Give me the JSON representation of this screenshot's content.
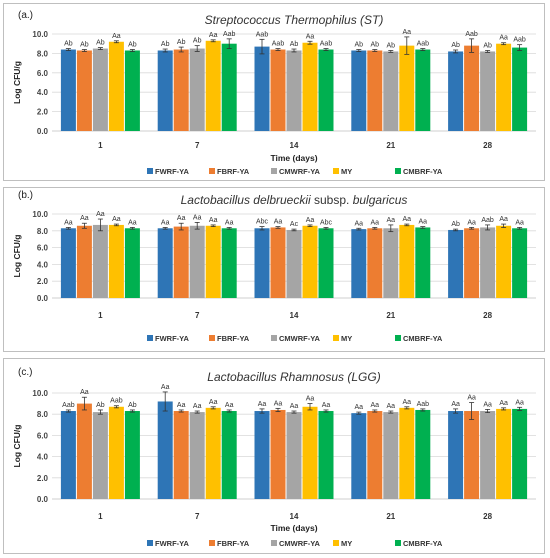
{
  "colors": {
    "FWRF-YA": "#2e75b6",
    "FBRF-YA": "#ed7d31",
    "CMWRF-YA": "#a5a5a5",
    "MY": "#ffc000",
    "CMBRF-YA": "#00b050"
  },
  "chart_data": [
    {
      "type": "bar",
      "panel_label": "(a.)",
      "title": "Streptococcus Thermophilus (ST)",
      "xlabel": "Time (days)",
      "ylabel": "Log CFU/g",
      "ylim": [
        0,
        10
      ],
      "yticks": [
        "0.0",
        "2.0",
        "4.0",
        "6.0",
        "8.0",
        "10.0"
      ],
      "grid": true,
      "legend_position": "bottom",
      "categories": [
        "1",
        "7",
        "14",
        "21",
        "28"
      ],
      "series": [
        {
          "name": "FWRF-YA",
          "values": [
            8.4,
            8.3,
            8.7,
            8.3,
            8.2
          ],
          "errors": [
            0.1,
            0.15,
            0.75,
            0.1,
            0.15
          ],
          "labels": [
            "Ab",
            "Ab",
            "Aab",
            "Ab",
            "Ab"
          ]
        },
        {
          "name": "FBRF-YA",
          "values": [
            8.3,
            8.4,
            8.4,
            8.3,
            8.8
          ],
          "errors": [
            0.1,
            0.25,
            0.1,
            0.1,
            0.7
          ],
          "labels": [
            "Ab",
            "Ab",
            "Aab",
            "Ab",
            "Aab"
          ]
        },
        {
          "name": "CMWRF-YA",
          "values": [
            8.5,
            8.5,
            8.3,
            8.2,
            8.2
          ],
          "errors": [
            0.1,
            0.3,
            0.15,
            0.1,
            0.1
          ],
          "labels": [
            "Ab",
            "Ab",
            "Ab",
            "Ab",
            "Ab"
          ]
        },
        {
          "name": "MY",
          "values": [
            9.2,
            9.3,
            9.1,
            8.8,
            9.0
          ],
          "errors": [
            0.1,
            0.1,
            0.15,
            0.9,
            0.1
          ],
          "labels": [
            "Aa",
            "Aa",
            "Aa",
            "Aa",
            "Aa"
          ]
        },
        {
          "name": "CMBRF-YA",
          "values": [
            8.3,
            9.0,
            8.4,
            8.4,
            8.6
          ],
          "errors": [
            0.1,
            0.5,
            0.1,
            0.1,
            0.3
          ],
          "labels": [
            "Ab",
            "Aab",
            "Aab",
            "Aab",
            "Aab"
          ]
        }
      ]
    },
    {
      "type": "bar",
      "panel_label": "(b.)",
      "title_italic": "Lactobacillus delbrueckii",
      "title_normal": " subsp. ",
      "title_italic2": "bulgaricus",
      "xlabel": "",
      "ylabel": "Log CFU/g",
      "ylim": [
        0,
        10
      ],
      "yticks": [
        "0.0",
        "2.0",
        "4.0",
        "6.0",
        "8.0",
        "10.0"
      ],
      "grid": true,
      "legend_position": "bottom",
      "categories": [
        "1",
        "7",
        "14",
        "21",
        "28"
      ],
      "series": [
        {
          "name": "FWRF-YA",
          "values": [
            8.3,
            8.3,
            8.3,
            8.2,
            8.1
          ],
          "errors": [
            0.1,
            0.1,
            0.2,
            0.1,
            0.1
          ],
          "labels": [
            "Aa",
            "Aa",
            "Abc",
            "Aa",
            "Ab"
          ]
        },
        {
          "name": "FBRF-YA",
          "values": [
            8.6,
            8.5,
            8.4,
            8.3,
            8.3
          ],
          "errors": [
            0.3,
            0.4,
            0.1,
            0.1,
            0.1
          ],
          "labels": [
            "Aa",
            "Aa",
            "Aa",
            "Aa",
            "Aa"
          ]
        },
        {
          "name": "CMWRF-YA",
          "values": [
            8.7,
            8.6,
            8.1,
            8.3,
            8.4
          ],
          "errors": [
            0.7,
            0.4,
            0.1,
            0.4,
            0.3
          ],
          "labels": [
            "Aa",
            "Aa",
            "Ac",
            "Aa",
            "Aab"
          ]
        },
        {
          "name": "MY",
          "values": [
            8.7,
            8.6,
            8.6,
            8.7,
            8.6
          ],
          "errors": [
            0.1,
            0.1,
            0.1,
            0.1,
            0.2
          ],
          "labels": [
            "Aa",
            "Aa",
            "Aa",
            "Aa",
            "Aa"
          ]
        },
        {
          "name": "CMBRF-YA",
          "values": [
            8.3,
            8.3,
            8.3,
            8.4,
            8.3
          ],
          "errors": [
            0.1,
            0.1,
            0.1,
            0.1,
            0.1
          ],
          "labels": [
            "Aa",
            "Aa",
            "Abc",
            "Aa",
            "Aa"
          ]
        }
      ]
    },
    {
      "type": "bar",
      "panel_label": "(c.)",
      "title": "Lactobacillus Rhamnosus (LGG)",
      "xlabel": "Time (days)",
      "ylabel": "Log CFU/g",
      "ylim": [
        0,
        10
      ],
      "yticks": [
        "0.0",
        "2.0",
        "4.0",
        "6.0",
        "8.0",
        "10.0"
      ],
      "grid": true,
      "legend_position": "bottom",
      "categories": [
        "1",
        "7",
        "14",
        "21",
        "28"
      ],
      "series": [
        {
          "name": "FWRF-YA",
          "values": [
            8.3,
            9.2,
            8.3,
            8.1,
            8.3
          ],
          "errors": [
            0.1,
            0.9,
            0.2,
            0.1,
            0.2
          ],
          "labels": [
            "Aab",
            "Aa",
            "Aa",
            "Aa",
            "Aa"
          ]
        },
        {
          "name": "FBRF-YA",
          "values": [
            9.0,
            8.3,
            8.4,
            8.3,
            8.3
          ],
          "errors": [
            0.6,
            0.1,
            0.15,
            0.1,
            0.8
          ],
          "labels": [
            "Aa",
            "Aa",
            "Aa",
            "Aa",
            "Aa"
          ]
        },
        {
          "name": "CMWRF-YA",
          "values": [
            8.2,
            8.2,
            8.2,
            8.2,
            8.3
          ],
          "errors": [
            0.2,
            0.1,
            0.1,
            0.1,
            0.15
          ],
          "labels": [
            "Ab",
            "Aa",
            "Aa",
            "Aa",
            "Aa"
          ]
        },
        {
          "name": "MY",
          "values": [
            8.7,
            8.6,
            8.7,
            8.6,
            8.5
          ],
          "errors": [
            0.1,
            0.1,
            0.3,
            0.1,
            0.1
          ],
          "labels": [
            "Aab",
            "Aa",
            "Aa",
            "Aa",
            "Aa"
          ]
        },
        {
          "name": "CMBRF-YA",
          "values": [
            8.3,
            8.3,
            8.3,
            8.4,
            8.5
          ],
          "errors": [
            0.1,
            0.1,
            0.1,
            0.1,
            0.15
          ],
          "labels": [
            "Ab",
            "Aa",
            "Aa",
            "Aab",
            "Aa"
          ]
        }
      ]
    }
  ]
}
